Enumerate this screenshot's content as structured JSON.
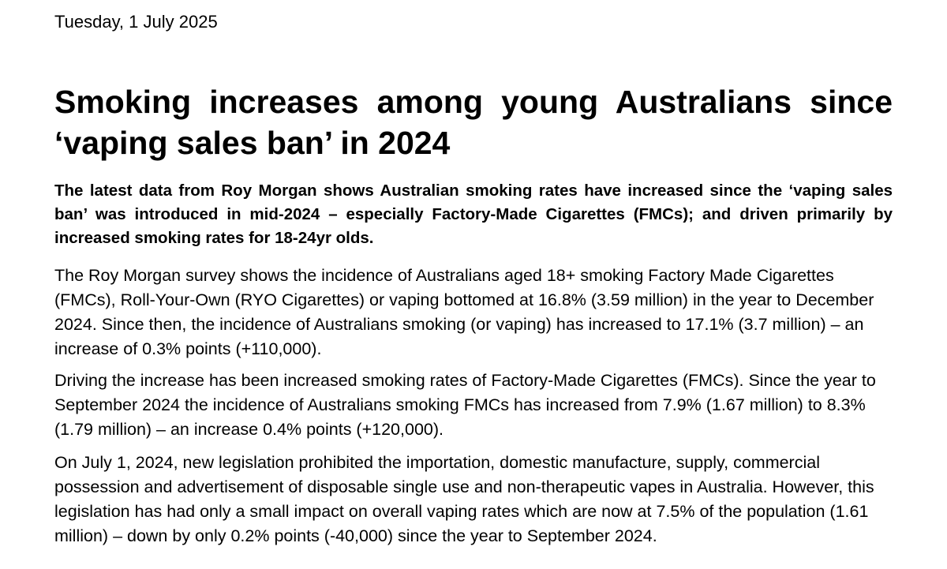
{
  "article": {
    "date": "Tuesday, 1 July 2025",
    "title": "Smoking increases among young Australians since ‘vaping sales ban’ in 2024",
    "lead": "The latest data from Roy Morgan shows Australian smoking rates have increased since the ‘vaping sales ban’ was introduced in mid-2024 – especially Factory-Made Cigarettes (FMCs); and driven primarily by increased smoking rates for 18-24yr olds.",
    "paragraphs": [
      "The Roy Morgan survey shows the incidence of Australians aged 18+ smoking Factory Made Cigarettes (FMCs), Roll-Your-Own (RYO Cigarettes) or vaping bottomed at 16.8% (3.59 million) in the year to December 2024. Since then, the incidence of Australians smoking (or vaping) has increased to 17.1% (3.7 million) – an increase of 0.3% points (+110,000).",
      "Driving the increase has been increased smoking rates of Factory-Made Cigarettes (FMCs). Since the year to September 2024 the incidence of Australians smoking FMCs has increased from 7.9% (1.67 million) to 8.3% (1.79 million) – an increase 0.4% points (+120,000).",
      "On July 1, 2024, new legislation prohibited the importation, domestic manufacture, supply, commercial possession and advertisement of disposable single use and non-therapeutic vapes in Australia. However, this legislation has had only a small impact on overall vaping rates which are now at 7.5% of the population (1.61 million) – down by only 0.2% points (-40,000) since the year to September 2024."
    ]
  }
}
